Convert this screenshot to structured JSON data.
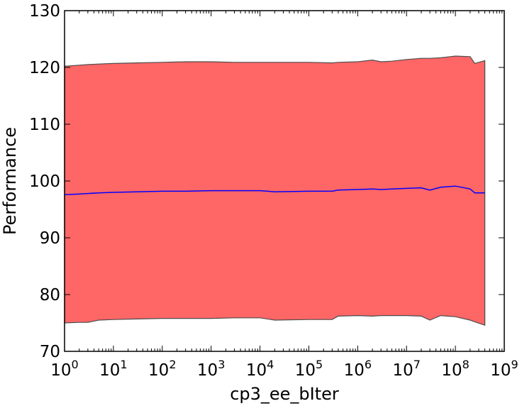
{
  "chart_data": {
    "type": "area",
    "title": "",
    "xlabel": "cp3_ee_bIter",
    "ylabel": "Performance",
    "xscale": "log",
    "xlim": [
      1,
      1000000000
    ],
    "ylim": [
      70,
      130
    ],
    "grid": false,
    "x_ticks": [
      {
        "base": "10",
        "exp": "0",
        "value": 1
      },
      {
        "base": "10",
        "exp": "1",
        "value": 10
      },
      {
        "base": "10",
        "exp": "2",
        "value": 100
      },
      {
        "base": "10",
        "exp": "3",
        "value": 1000
      },
      {
        "base": "10",
        "exp": "4",
        "value": 10000
      },
      {
        "base": "10",
        "exp": "5",
        "value": 100000
      },
      {
        "base": "10",
        "exp": "6",
        "value": 1000000
      },
      {
        "base": "10",
        "exp": "7",
        "value": 10000000
      },
      {
        "base": "10",
        "exp": "8",
        "value": 100000000
      },
      {
        "base": "10",
        "exp": "9",
        "value": 1000000000
      }
    ],
    "y_ticks": [
      "70",
      "80",
      "90",
      "100",
      "110",
      "120",
      "130"
    ],
    "colors": {
      "band_fill": "#ff6666",
      "band_edge": "#4d4d4d",
      "mean_line": "#0000ff"
    },
    "x": [
      1,
      2,
      3,
      5,
      10,
      30,
      100,
      300,
      1000,
      3000,
      10000,
      20000,
      100000,
      300000,
      400000,
      1000000,
      2000000,
      3000000,
      5000000,
      10000000,
      20000000,
      30000000,
      50000000,
      100000000,
      200000000,
      250000000,
      400000000
    ],
    "series": [
      {
        "role": "mean",
        "values": [
          97.6,
          97.7,
          97.8,
          97.9,
          98.0,
          98.1,
          98.2,
          98.2,
          98.3,
          98.3,
          98.3,
          98.1,
          98.2,
          98.2,
          98.4,
          98.5,
          98.6,
          98.5,
          98.6,
          98.7,
          98.8,
          98.4,
          98.9,
          99.1,
          98.6,
          97.9,
          97.9
        ]
      },
      {
        "role": "upper",
        "values": [
          120.2,
          120.4,
          120.5,
          120.6,
          120.7,
          120.8,
          120.9,
          121.0,
          121.0,
          120.9,
          120.9,
          120.9,
          120.9,
          120.8,
          120.9,
          121.0,
          121.3,
          121.0,
          121.1,
          121.4,
          121.6,
          121.6,
          121.7,
          122.0,
          121.9,
          120.7,
          121.2
        ]
      },
      {
        "role": "lower",
        "values": [
          75.0,
          75.1,
          75.1,
          75.5,
          75.6,
          75.7,
          75.8,
          75.8,
          75.8,
          75.9,
          75.9,
          75.5,
          75.6,
          75.6,
          76.2,
          76.3,
          76.2,
          76.3,
          76.3,
          76.3,
          76.2,
          75.5,
          76.3,
          76.1,
          75.5,
          75.2,
          74.6
        ]
      }
    ]
  }
}
